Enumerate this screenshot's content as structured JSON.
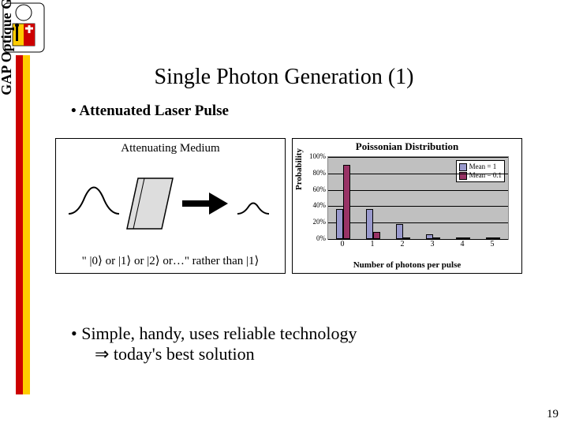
{
  "slide": {
    "title": "Single Photon Generation (1)",
    "number": "19",
    "side_label": "GAP Optique   Geneva University"
  },
  "bullet": "•  Attenuated Laser Pulse",
  "diagram": {
    "label": "Attenuating Medium",
    "state_text": "\" |0⟩ or |1⟩ or |2⟩ or…\" rather than |1⟩"
  },
  "chart": {
    "title": "Poissonian Distribution",
    "y_label": "Probability",
    "x_label": "Number of photons per pulse",
    "y_ticks": [
      "0%",
      "20%",
      "40%",
      "60%",
      "80%",
      "100%"
    ],
    "x_ticks": [
      "0",
      "1",
      "2",
      "3",
      "4",
      "5"
    ],
    "legend": [
      {
        "label": "Mean = 1",
        "color": "#9999cc"
      },
      {
        "label": "Mean = 0.1",
        "color": "#993366"
      }
    ],
    "series": [
      {
        "name": "Mean = 1",
        "color": "#9999cc",
        "values": [
          37,
          37,
          18,
          6,
          2,
          0
        ]
      },
      {
        "name": "Mean = 0.1",
        "color": "#993366",
        "values": [
          90,
          9,
          1,
          0,
          0,
          0
        ]
      }
    ],
    "y_max": 100,
    "plot_bg": "#c0c0c0"
  },
  "conclusion": {
    "line1": "•   Simple, handy, uses reliable technology",
    "line2": "⇒   today's best solution"
  },
  "logo_colors": {
    "red": "#cc0000",
    "yellow": "#ffcc00",
    "black": "#000000"
  }
}
